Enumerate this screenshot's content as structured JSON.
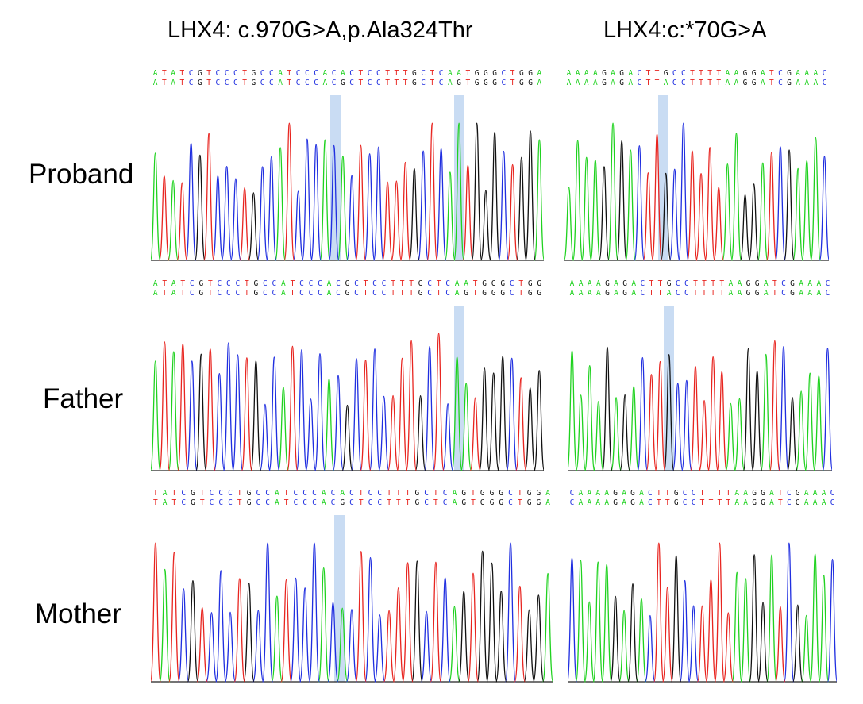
{
  "titles": {
    "left": "LHX4: c.970G>A,p.Ala324Thr",
    "right": "LHX4:c:*70G>A"
  },
  "rows": [
    {
      "label": "Proband",
      "left": {
        "seq_top": "ATATCGTCCCTGCCATCCCACACTCCTTTGCTCAATGGGCTGGA",
        "seq_bottom": "ATATCGTCCCTGCCATCCCACGCTCCTTTGCTCAGTGGGCTGGA"
      },
      "right": {
        "seq_top": "AAAAGAGACTTGCCTTTTAAGGATCGAAAC",
        "seq_bottom": "AAAAGAGACTTACCTTTTAAGGATCGAAAC"
      }
    },
    {
      "label": "Father",
      "left": {
        "seq_top": "ATATCGTCCCTGCCATCCCACGCTCCTTTGCTCAATGGGCTGG",
        "seq_bottom": "ATATCGTCCCTGCCATCCCACGCTCCTTTGCTCAGTGGGCTGG"
      },
      "right": {
        "seq_top": "AAAAGAGACTTGCCTTTTAAGGATCGAAAC",
        "seq_bottom": "AAAAGAGACTTACCTTTTAAGGATCGAAAC"
      }
    },
    {
      "label": "Mother",
      "left": {
        "seq_top": "TATCGTCCCTGCCATCCCACACTCCTTTGCTCAGTGGGCTGGA",
        "seq_bottom": "TATCGTCCCTGCCATCCCACGCTCCTTTGCTCAGTGGGCTGGA"
      },
      "right": {
        "seq_top": "CAAAAGAGACTTGCCTTTTAAGGATCGAAAC",
        "seq_bottom": "CAAAAGAGACTTGCCTTTTAAGGATCGAAAC"
      }
    }
  ],
  "colors": {
    "A": "#1fd21f",
    "C": "#1f2ee0",
    "G": "#111111",
    "T": "#e8241f",
    "highlight": "#c9dcf3"
  }
}
